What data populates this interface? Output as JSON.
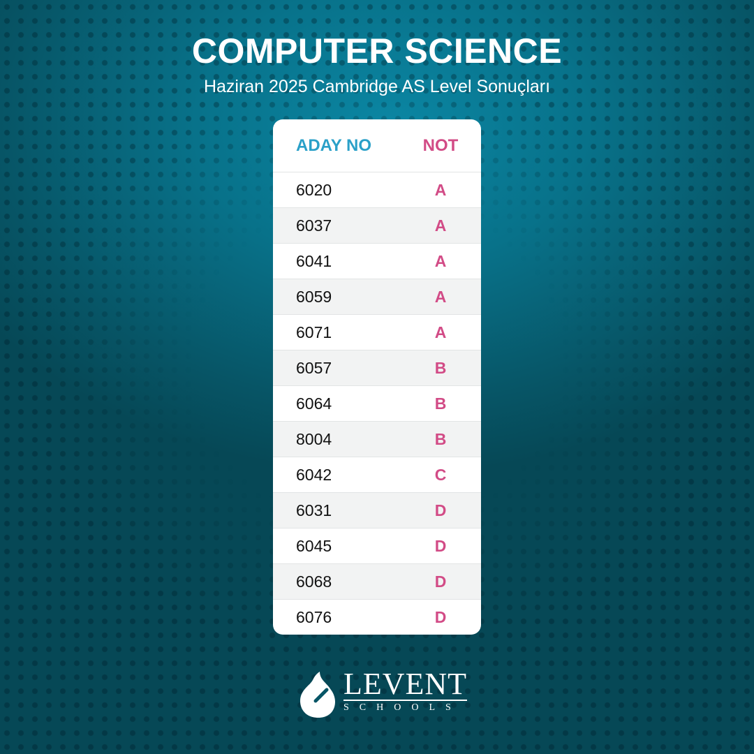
{
  "title": "COMPUTER SCIENCE",
  "subtitle": "Haziran 2025 Cambridge AS Level Sonuçları",
  "table": {
    "headers": [
      "ADAY NO",
      "NOT"
    ],
    "rows": [
      {
        "no": "6020",
        "grade": "A"
      },
      {
        "no": "6037",
        "grade": "A"
      },
      {
        "no": "6041",
        "grade": "A"
      },
      {
        "no": "6059",
        "grade": "A"
      },
      {
        "no": "6071",
        "grade": "A"
      },
      {
        "no": "6057",
        "grade": "B"
      },
      {
        "no": "6064",
        "grade": "B"
      },
      {
        "no": "8004",
        "grade": "B"
      },
      {
        "no": "6042",
        "grade": "C"
      },
      {
        "no": "6031",
        "grade": "D"
      },
      {
        "no": "6045",
        "grade": "D"
      },
      {
        "no": "6068",
        "grade": "D"
      },
      {
        "no": "6076",
        "grade": "D"
      }
    ]
  },
  "logo": {
    "name": "LEVENT",
    "sub": "SCHOOLS",
    "icon": "drop-icon"
  },
  "colors": {
    "header_no": "#2aa0c8",
    "grade": "#d24b86",
    "background": "#08728a"
  }
}
